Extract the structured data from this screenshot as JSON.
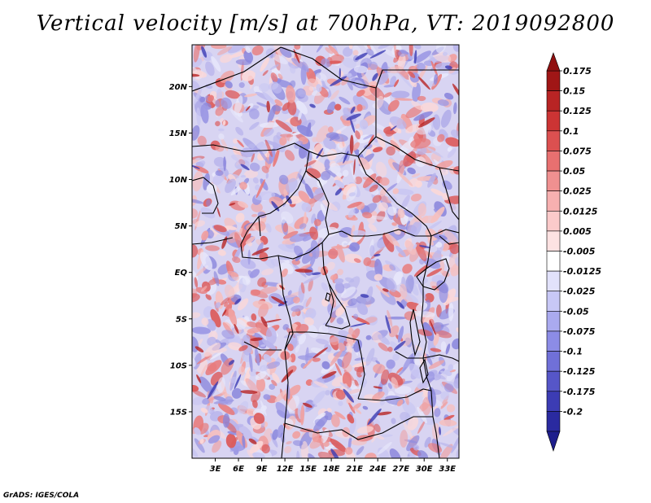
{
  "title": "Vertical velocity [m/s] at 700hPa, VT: 2019092800",
  "credit": "GrADS: IGES/COLA",
  "map": {
    "projection": "lat-lon",
    "lon_range_deg": [
      0,
      34.5
    ],
    "lat_range_deg": [
      -20,
      24.5
    ],
    "lat_ticks": [
      {
        "value": 20,
        "label": "20N"
      },
      {
        "value": 15,
        "label": "15N"
      },
      {
        "value": 10,
        "label": "10N"
      },
      {
        "value": 5,
        "label": "5N"
      },
      {
        "value": 0,
        "label": "EQ"
      },
      {
        "value": -5,
        "label": "5S"
      },
      {
        "value": -10,
        "label": "10S"
      },
      {
        "value": -15,
        "label": "15S"
      }
    ],
    "lon_ticks": [
      {
        "value": 3,
        "label": "3E"
      },
      {
        "value": 6,
        "label": "6E"
      },
      {
        "value": 9,
        "label": "9E"
      },
      {
        "value": 12,
        "label": "12E"
      },
      {
        "value": 15,
        "label": "15E"
      },
      {
        "value": 18,
        "label": "18E"
      },
      {
        "value": 21,
        "label": "21E"
      },
      {
        "value": 24,
        "label": "24E"
      },
      {
        "value": 27,
        "label": "27E"
      },
      {
        "value": 30,
        "label": "30E"
      },
      {
        "value": 33,
        "label": "33E"
      }
    ]
  },
  "colorbar": {
    "levels": [
      {
        "label": "0.175",
        "color": "#a01616"
      },
      {
        "label": "0.15",
        "color": "#b82424"
      },
      {
        "label": "0.125",
        "color": "#cc3434"
      },
      {
        "label": "0.1",
        "color": "#dc5050"
      },
      {
        "label": "0.075",
        "color": "#e87070"
      },
      {
        "label": "0.05",
        "color": "#f09090"
      },
      {
        "label": "0.025",
        "color": "#f7b0b0"
      },
      {
        "label": "0.0125",
        "color": "#fbcaca"
      },
      {
        "label": "0.005",
        "color": "#fde2e2"
      },
      {
        "label": "-0.005",
        "color": "#ffffff"
      },
      {
        "label": "-0.0125",
        "color": "#e2e2fb"
      },
      {
        "label": "-0.025",
        "color": "#c8c8f6"
      },
      {
        "label": "-0.05",
        "color": "#aaaaef"
      },
      {
        "label": "-0.075",
        "color": "#8c8ce6"
      },
      {
        "label": "-0.1",
        "color": "#7070d8"
      },
      {
        "label": "-0.125",
        "color": "#5656c8"
      },
      {
        "label": "-0.175",
        "color": "#3c3cb4"
      },
      {
        "label": "-0.2",
        "color": "#2a2aa0"
      }
    ],
    "top_extension_color": "#901010",
    "bottom_extension_color": "#1e1e8c"
  }
}
